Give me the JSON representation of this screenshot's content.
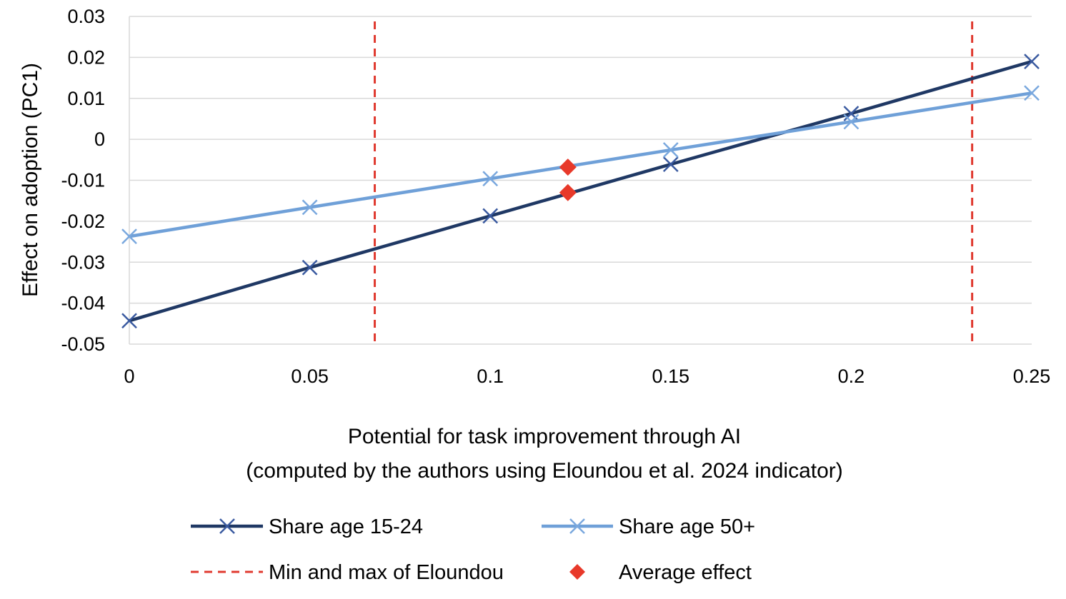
{
  "chart_data": {
    "type": "line",
    "xlabel_line1": "Potential for task improvement through AI",
    "xlabel_line2": "(computed by the authors using Eloundou et al. 2024 indicator)",
    "ylabel": "Effect on  adoption (PC1)",
    "xlim": [
      0,
      0.25
    ],
    "ylim": [
      -0.05,
      0.03
    ],
    "x_ticks": [
      "0",
      "0.05",
      "0.1",
      "0.15",
      "0.2",
      "0.25"
    ],
    "y_ticks": [
      "0.03",
      "0.02",
      "0.01",
      "0",
      "-0.01",
      "-0.02",
      "-0.03",
      "-0.04",
      "-0.05"
    ],
    "grid": "horizontal",
    "x": [
      0,
      0.05,
      0.1,
      0.15,
      0.2,
      0.25
    ],
    "series": [
      {
        "name": "Share age 15-24",
        "values": [
          -0.0443,
          -0.0313,
          -0.0187,
          -0.0061,
          0.0063,
          0.019
        ],
        "color": "#1f3864",
        "marker": "x"
      },
      {
        "name": "Share age 50+",
        "values": [
          -0.0237,
          -0.0166,
          -0.0096,
          -0.0026,
          0.0043,
          0.0113
        ],
        "color": "#6fa0d8",
        "marker": "x"
      }
    ],
    "vlines": {
      "name": "Min and max of Eloundou",
      "x": [
        0.068,
        0.2335
      ],
      "color": "#e03a2f",
      "style": "dashed"
    },
    "average_effect": {
      "name": "Average effect",
      "x": 0.1215,
      "values": [
        -0.0068,
        -0.013
      ],
      "color": "#e8392a",
      "marker": "diamond"
    },
    "legend": "bottom"
  }
}
